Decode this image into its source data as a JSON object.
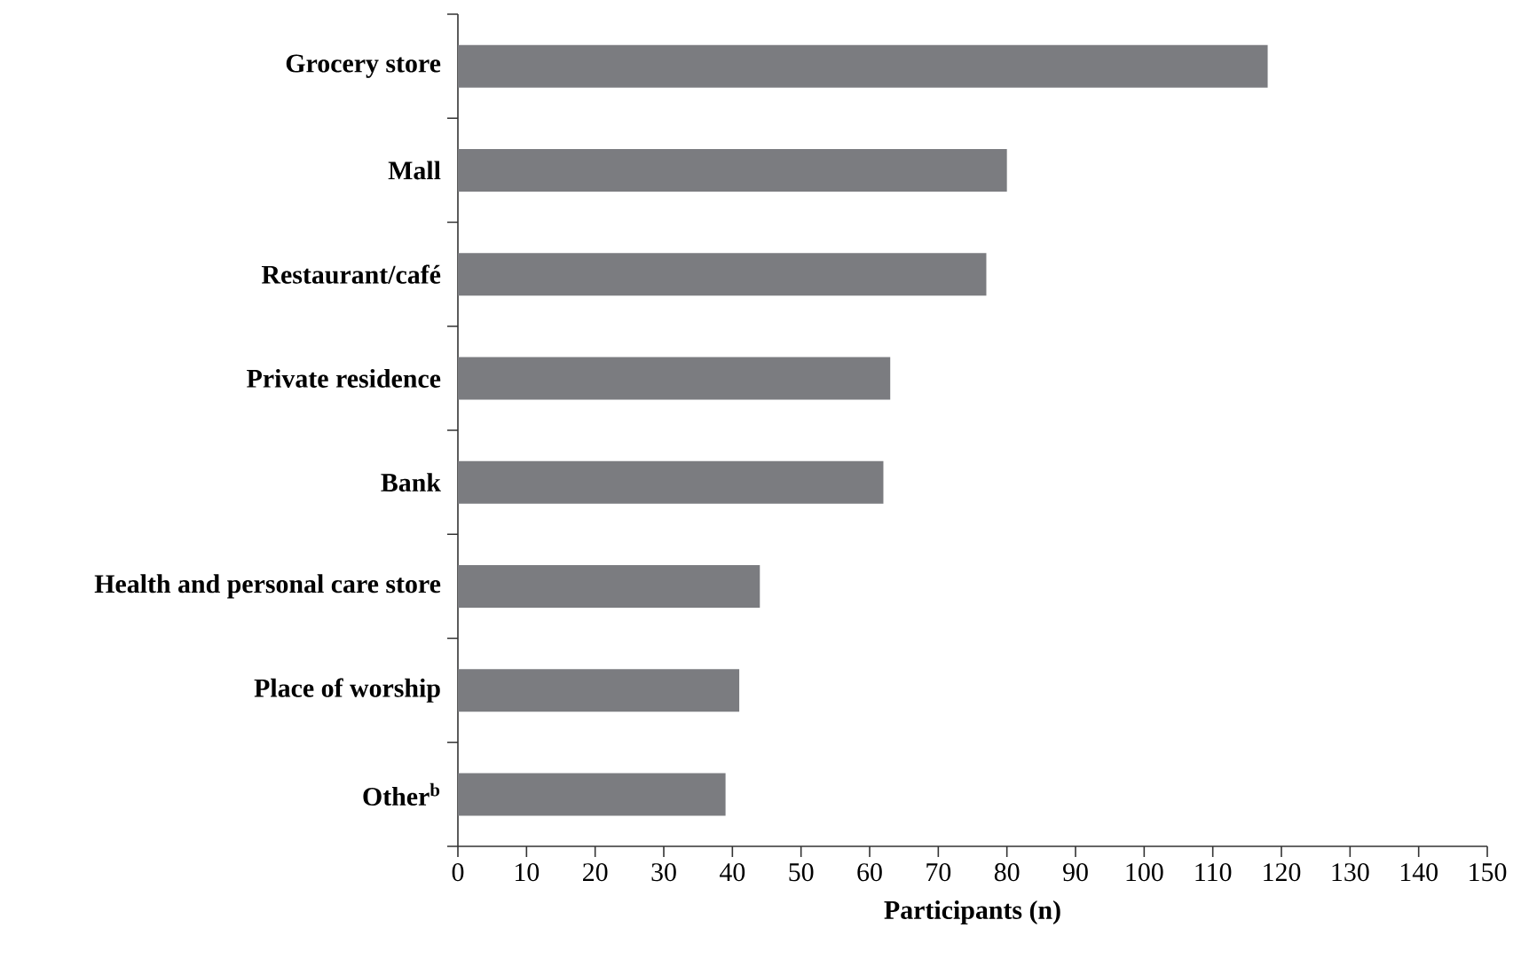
{
  "chart_data": {
    "type": "bar",
    "orientation": "horizontal",
    "xlabel": "Participants (n)",
    "categories": [
      "Grocery store",
      "Mall",
      "Restaurant/café",
      "Private residence",
      "Bank",
      "Health and personal care store",
      "Place of worship",
      "Other$^{b}$"
    ],
    "values": [
      118,
      80,
      77,
      63,
      62,
      44,
      41,
      39
    ],
    "color": "#7b7c80",
    "xlim": [
      0,
      150
    ],
    "xticks": [
      0,
      10,
      20,
      30,
      40,
      50,
      60,
      70,
      80,
      90,
      100,
      110,
      120,
      130,
      140,
      150
    ]
  }
}
